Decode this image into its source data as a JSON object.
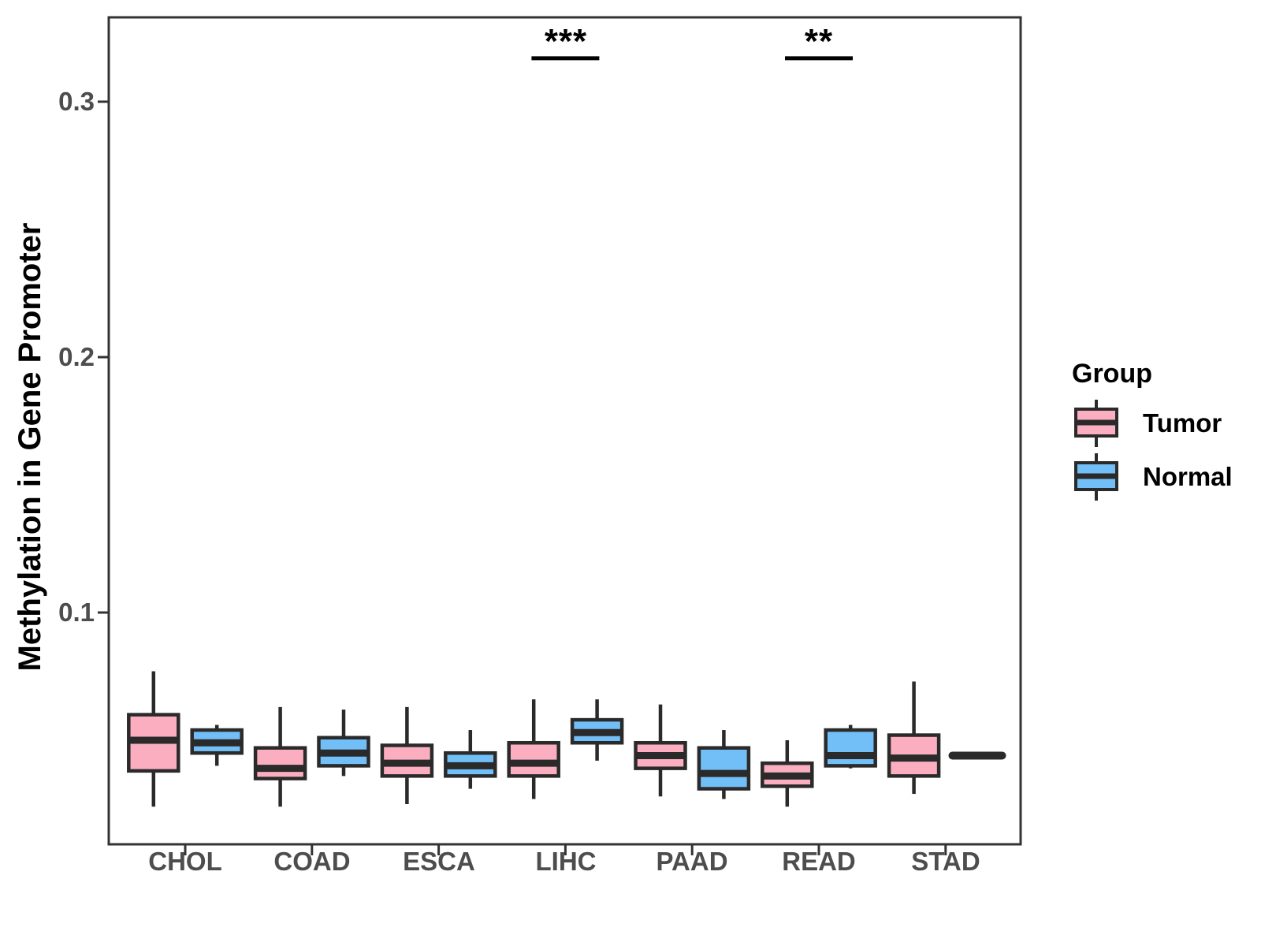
{
  "chart_data": {
    "type": "grouped_boxplot",
    "title": "",
    "xlabel": "",
    "ylabel": "Methylation in Gene Promoter",
    "y_ticks": [
      {
        "value": 0.1,
        "label": "0.1"
      },
      {
        "value": 0.2,
        "label": "0.2"
      },
      {
        "value": 0.3,
        "label": "0.3"
      }
    ],
    "ylim": [
      0.009,
      0.333
    ],
    "grid": false,
    "categories": [
      "CHOL",
      "COAD",
      "ESCA",
      "LIHC",
      "PAAD",
      "READ",
      "STAD"
    ],
    "series": [
      {
        "name": "Tumor",
        "color": "#FBAEC0",
        "boxes": [
          {
            "category": "CHOL",
            "min": 0.024,
            "q1": 0.038,
            "median": 0.05,
            "q3": 0.06,
            "max": 0.077
          },
          {
            "category": "COAD",
            "min": 0.024,
            "q1": 0.035,
            "median": 0.039,
            "q3": 0.047,
            "max": 0.063
          },
          {
            "category": "ESCA",
            "min": 0.025,
            "q1": 0.036,
            "median": 0.041,
            "q3": 0.048,
            "max": 0.063
          },
          {
            "category": "LIHC",
            "min": 0.027,
            "q1": 0.036,
            "median": 0.041,
            "q3": 0.049,
            "max": 0.066
          },
          {
            "category": "PAAD",
            "min": 0.028,
            "q1": 0.039,
            "median": 0.044,
            "q3": 0.049,
            "max": 0.064
          },
          {
            "category": "READ",
            "min": 0.024,
            "q1": 0.032,
            "median": 0.036,
            "q3": 0.041,
            "max": 0.05
          },
          {
            "category": "STAD",
            "min": 0.029,
            "q1": 0.036,
            "median": 0.043,
            "q3": 0.052,
            "max": 0.073
          }
        ]
      },
      {
        "name": "Normal",
        "color": "#72BEF6",
        "boxes": [
          {
            "category": "CHOL",
            "min": 0.04,
            "q1": 0.045,
            "median": 0.049,
            "q3": 0.054,
            "max": 0.056
          },
          {
            "category": "COAD",
            "min": 0.036,
            "q1": 0.04,
            "median": 0.045,
            "q3": 0.051,
            "max": 0.062
          },
          {
            "category": "ESCA",
            "min": 0.031,
            "q1": 0.036,
            "median": 0.04,
            "q3": 0.045,
            "max": 0.054
          },
          {
            "category": "LIHC",
            "min": 0.042,
            "q1": 0.049,
            "median": 0.053,
            "q3": 0.058,
            "max": 0.066
          },
          {
            "category": "PAAD",
            "min": 0.027,
            "q1": 0.031,
            "median": 0.037,
            "q3": 0.047,
            "max": 0.054
          },
          {
            "category": "READ",
            "min": 0.039,
            "q1": 0.04,
            "median": 0.044,
            "q3": 0.054,
            "max": 0.056
          },
          {
            "category": "STAD",
            "min": 0.044,
            "q1": 0.044,
            "median": 0.044,
            "q3": 0.044,
            "max": 0.044
          }
        ]
      }
    ],
    "annotations": [
      {
        "category": "LIHC",
        "label": "***",
        "y": 0.317
      },
      {
        "category": "READ",
        "label": "**",
        "y": 0.317
      }
    ],
    "legend": {
      "title": "Group",
      "position": "right",
      "entries": [
        {
          "label": "Tumor",
          "color": "#FBAEC0"
        },
        {
          "label": "Normal",
          "color": "#72BEF6"
        }
      ]
    }
  }
}
